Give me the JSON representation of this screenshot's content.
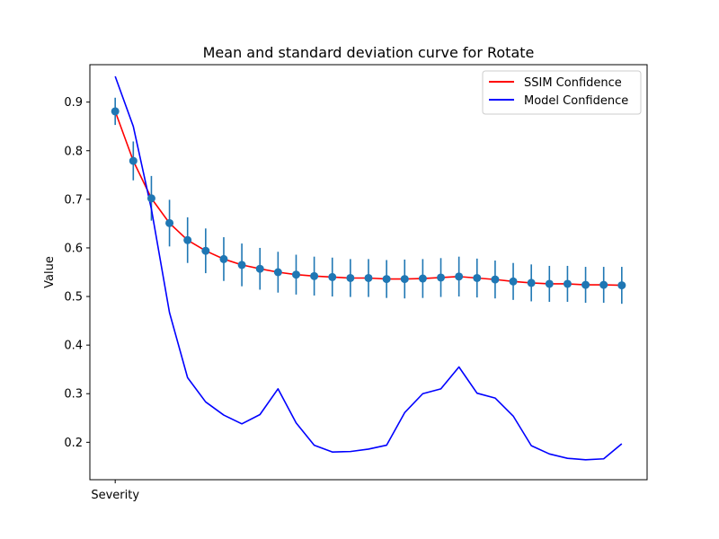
{
  "chart_data": {
    "type": "line",
    "title": "Mean and standard deviation curve for Rotate",
    "xlabel": "",
    "ylabel": "Value",
    "x_tick_labels": [
      "Severity"
    ],
    "yticks": [
      0.2,
      0.3,
      0.4,
      0.5,
      0.6,
      0.7,
      0.8,
      0.9
    ],
    "ylim": [
      0.123,
      0.977
    ],
    "xlim": [
      -1.4,
      29.4
    ],
    "grid": false,
    "legend_position": "top-right",
    "x": [
      0,
      1,
      2,
      3,
      4,
      5,
      6,
      7,
      8,
      9,
      10,
      11,
      12,
      13,
      14,
      15,
      16,
      17,
      18,
      19,
      20,
      21,
      22,
      23,
      24,
      25,
      26,
      27,
      28
    ],
    "series": [
      {
        "name": "SSIM Confidence",
        "color": "#ff0000",
        "marker_color": "#1f77b4",
        "values": [
          0.881,
          0.779,
          0.702,
          0.651,
          0.616,
          0.594,
          0.577,
          0.565,
          0.557,
          0.55,
          0.545,
          0.542,
          0.54,
          0.538,
          0.538,
          0.536,
          0.536,
          0.537,
          0.539,
          0.541,
          0.538,
          0.535,
          0.531,
          0.528,
          0.526,
          0.526,
          0.524,
          0.524,
          0.523
        ],
        "std": [
          0.028,
          0.04,
          0.046,
          0.048,
          0.047,
          0.046,
          0.045,
          0.044,
          0.043,
          0.042,
          0.041,
          0.04,
          0.04,
          0.039,
          0.039,
          0.039,
          0.04,
          0.04,
          0.04,
          0.041,
          0.04,
          0.039,
          0.038,
          0.038,
          0.037,
          0.037,
          0.037,
          0.037,
          0.038
        ]
      },
      {
        "name": "Model Confidence",
        "color": "#0000ff",
        "values": [
          0.953,
          0.85,
          0.68,
          0.467,
          0.333,
          0.283,
          0.256,
          0.238,
          0.257,
          0.31,
          0.24,
          0.194,
          0.18,
          0.181,
          0.186,
          0.194,
          0.261,
          0.3,
          0.31,
          0.355,
          0.301,
          0.291,
          0.254,
          0.193,
          0.176,
          0.167,
          0.164,
          0.166,
          0.197
        ]
      }
    ]
  }
}
